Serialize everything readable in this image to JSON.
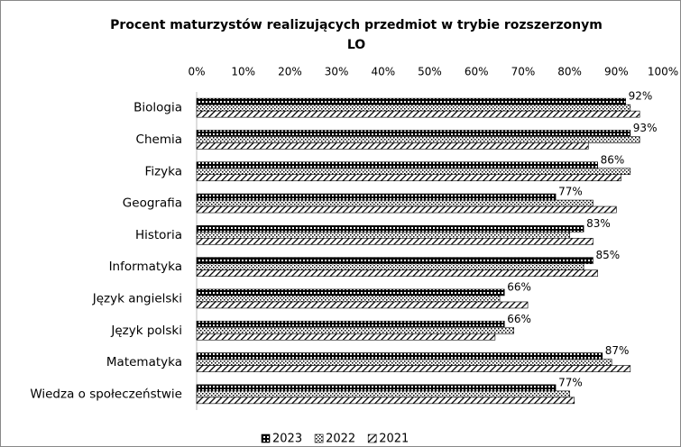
{
  "chart_data": {
    "type": "bar",
    "orientation": "horizontal",
    "title": "Procent maturzystów realizujących przedmiot w trybie rozszerzonym",
    "subtitle": "LO",
    "categories": [
      "Biologia",
      "Chemia",
      "Fizyka",
      "Geografia",
      "Historia",
      "Informatyka",
      "Język angielski",
      "Język polski",
      "Matematyka",
      "Wiedza o społeczeństwie"
    ],
    "series": [
      {
        "name": "2023",
        "color": "#000000",
        "values": [
          92,
          93,
          86,
          77,
          83,
          85,
          66,
          66,
          87,
          77
        ],
        "value_labels": [
          "92%",
          "93%",
          "86%",
          "77%",
          "83%",
          "85%",
          "66%",
          "66%",
          "87%",
          "77%"
        ]
      },
      {
        "name": "2022",
        "color": "#000000",
        "values": [
          93,
          95,
          93,
          85,
          80,
          83,
          65,
          68,
          89,
          80
        ]
      },
      {
        "name": "2021",
        "color": "#000000",
        "values": [
          95,
          84,
          91,
          90,
          85,
          86,
          71,
          64,
          93,
          81
        ]
      }
    ],
    "xlim": [
      0,
      100
    ],
    "xticks": [
      {
        "value": 0,
        "label": "0%"
      },
      {
        "value": 10,
        "label": "10%"
      },
      {
        "value": 20,
        "label": "20%"
      },
      {
        "value": 30,
        "label": "30%"
      },
      {
        "value": 40,
        "label": "40%"
      },
      {
        "value": 50,
        "label": "50%"
      },
      {
        "value": 60,
        "label": "60%"
      },
      {
        "value": 70,
        "label": "70%"
      },
      {
        "value": 80,
        "label": "80%"
      },
      {
        "value": 90,
        "label": "90%"
      },
      {
        "value": 100,
        "label": "100%"
      }
    ],
    "legend": "bottom"
  }
}
